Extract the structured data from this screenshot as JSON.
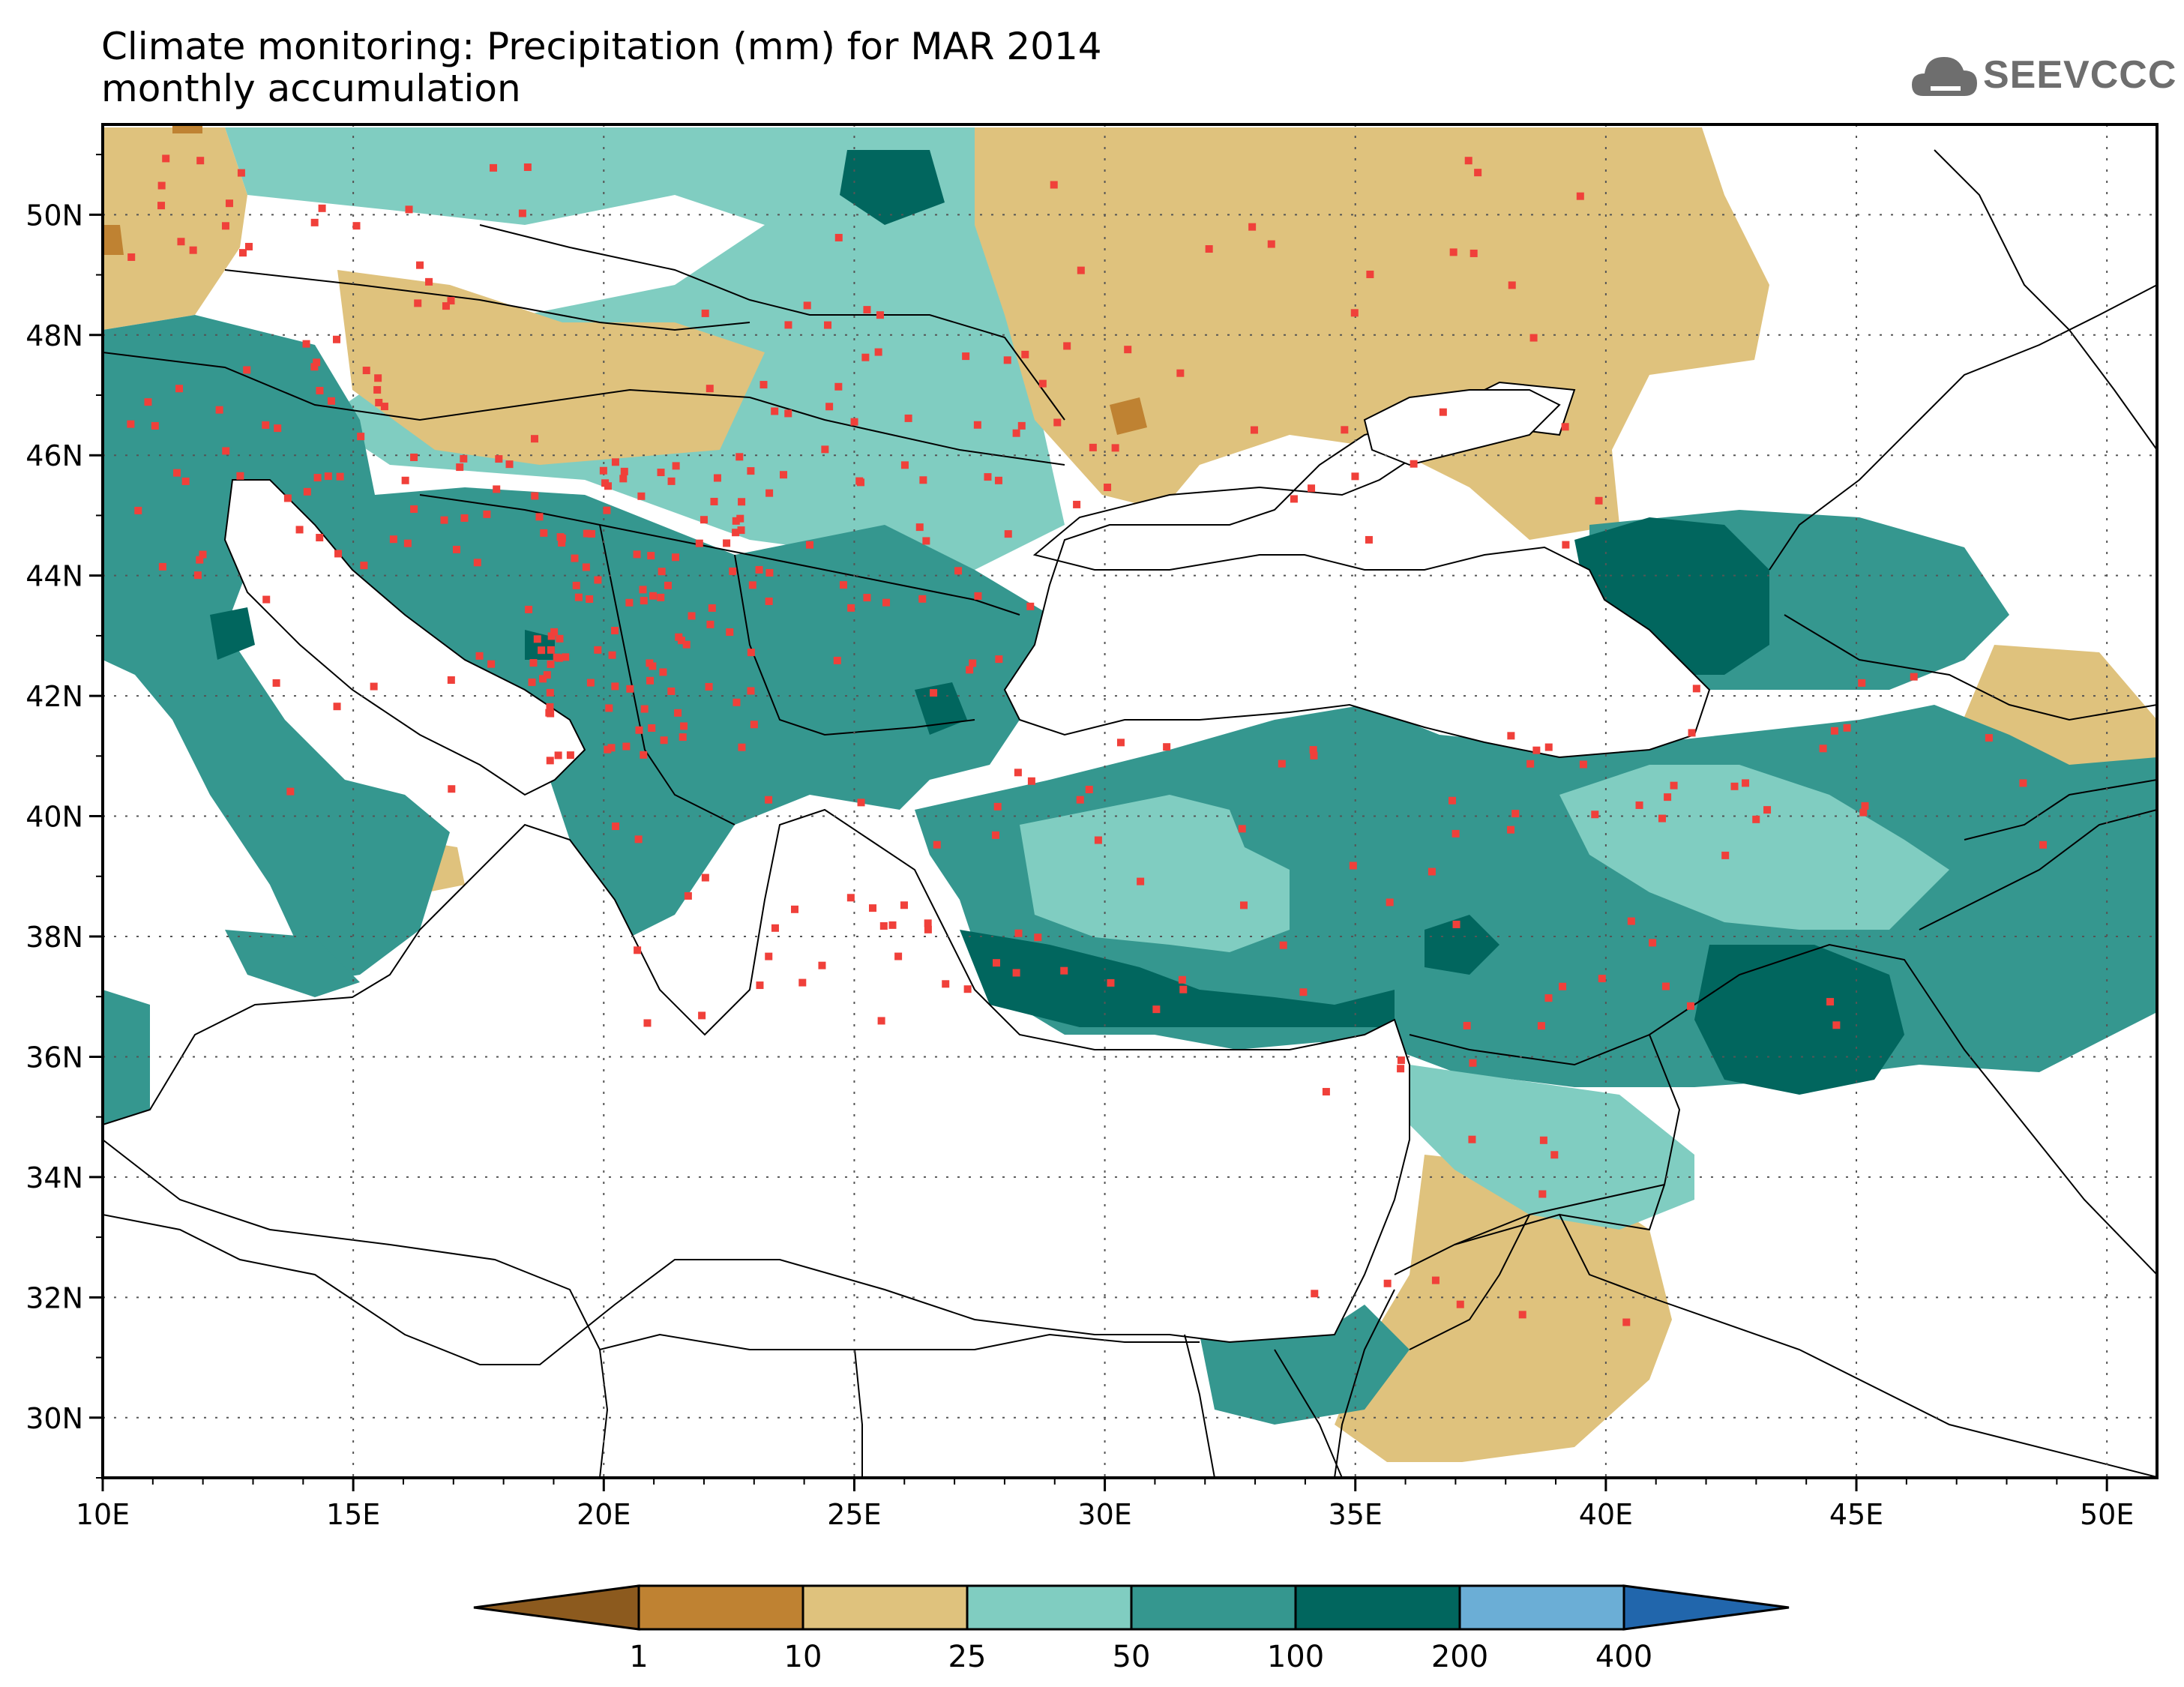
{
  "header": {
    "title_line1": "Climate monitoring: Precipitation (mm) for MAR 2014",
    "title_line2": "monthly accumulation",
    "logo_text": "SEEVCCC"
  },
  "map": {
    "lon_range": [
      10,
      51
    ],
    "lat_range": [
      29,
      51.5
    ],
    "lon_ticks": [
      "10E",
      "15E",
      "20E",
      "25E",
      "30E",
      "35E",
      "40E",
      "45E",
      "50E"
    ],
    "lat_ticks": [
      "30N",
      "32N",
      "34N",
      "36N",
      "38N",
      "40N",
      "42N",
      "44N",
      "46N",
      "48N",
      "50N"
    ],
    "station_color": "#f0403a"
  },
  "legend": {
    "tick_labels": [
      "1",
      "10",
      "25",
      "50",
      "100",
      "200",
      "400"
    ],
    "colors": {
      "below_1": "#8c5a1e",
      "1_10": "#bf8232",
      "10_25": "#dfc27d",
      "25_50": "#80cdc1",
      "50_100": "#35978f",
      "100_200": "#01665e",
      "200_400": "#6baed6",
      "above_400": "#2166ac"
    }
  }
}
